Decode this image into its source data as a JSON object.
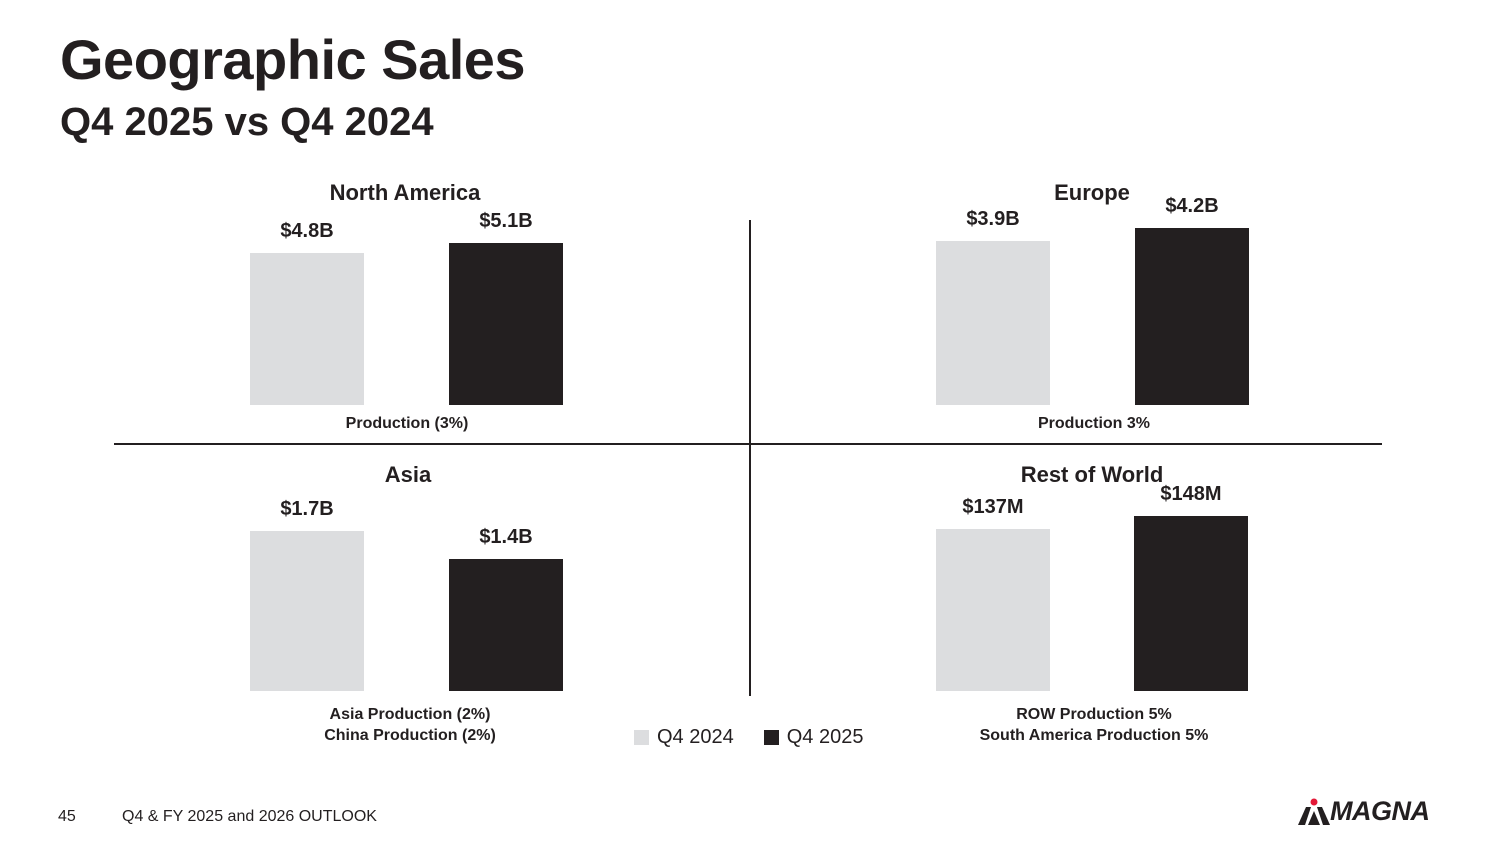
{
  "header": {
    "title": "Geographic Sales",
    "subtitle": "Q4 2025 vs Q4 2024"
  },
  "colors": {
    "q4_2024": "#dcdddf",
    "q4_2025": "#231f20",
    "logo_accent": "#e31837"
  },
  "chart_data": [
    {
      "type": "bar",
      "title": "North America",
      "categories": [
        "Q4 2024",
        "Q4 2025"
      ],
      "values": [
        4.8,
        5.1
      ],
      "data_labels": [
        "$4.8B",
        "$5.1B"
      ],
      "notes": [
        "Production (3%)"
      ]
    },
    {
      "type": "bar",
      "title": "Europe",
      "categories": [
        "Q4 2024",
        "Q4 2025"
      ],
      "values": [
        3.9,
        4.2
      ],
      "data_labels": [
        "$3.9B",
        "$4.2B"
      ],
      "notes": [
        "Production 3%"
      ]
    },
    {
      "type": "bar",
      "title": "Asia",
      "categories": [
        "Q4 2024",
        "Q4 2025"
      ],
      "values": [
        1.7,
        1.4
      ],
      "data_labels": [
        "$1.7B",
        "$1.4B"
      ],
      "notes": [
        "Asia Production (2%)",
        "China Production (2%)"
      ]
    },
    {
      "type": "bar",
      "title": "Rest of World",
      "categories": [
        "Q4 2024",
        "Q4 2025"
      ],
      "values": [
        137,
        148
      ],
      "data_labels": [
        "$137M",
        "$148M"
      ],
      "notes": [
        "ROW Production 5%",
        "South America Production 5%"
      ]
    }
  ],
  "legend": {
    "items": [
      "Q4 2024",
      "Q4 2025"
    ]
  },
  "footer": {
    "page_number": "45",
    "text": "Q4 & FY 2025 and 2026 OUTLOOK",
    "logo_text": "MAGNA"
  }
}
